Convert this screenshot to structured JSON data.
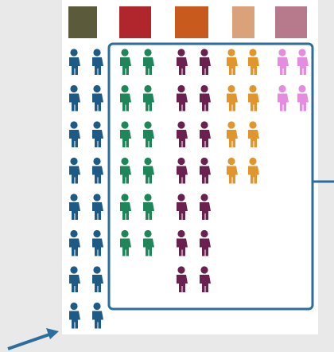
{
  "chart_data": {
    "type": "pictograph",
    "categories": [
      null,
      null,
      null,
      null,
      null
    ],
    "series": [
      {
        "color": "#1d5a86",
        "values": [
          16,
          null,
          null,
          null,
          null
        ]
      },
      {
        "color": "#1f8659",
        "values": [
          null,
          12,
          null,
          null,
          null
        ]
      },
      {
        "color": "#6a2150",
        "values": [
          null,
          null,
          14,
          null,
          null
        ]
      },
      {
        "color": "#e0962c",
        "values": [
          null,
          null,
          null,
          8,
          null
        ]
      },
      {
        "color": "#e48de0",
        "values": [
          null,
          null,
          null,
          null,
          4
        ]
      }
    ]
  }
}
